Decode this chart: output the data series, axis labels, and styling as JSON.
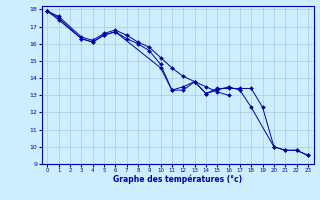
{
  "title": "Graphe des températures (°c)",
  "bg_color": "#cceeff",
  "grid_color": "#aaccdd",
  "line_color": "#0000aa",
  "xlim": [
    -0.5,
    23.5
  ],
  "ylim": [
    9,
    18.2
  ],
  "xticks": [
    0,
    1,
    2,
    3,
    4,
    5,
    6,
    7,
    8,
    9,
    10,
    11,
    12,
    13,
    14,
    15,
    16,
    17,
    18,
    19,
    20,
    21,
    22,
    23
  ],
  "yticks": [
    9,
    10,
    11,
    12,
    13,
    14,
    15,
    16,
    17,
    18
  ],
  "series": [
    {
      "x": [
        0,
        1,
        3,
        4,
        5,
        6,
        7,
        8,
        9,
        10,
        11,
        12,
        13,
        14,
        15,
        16
      ],
      "y": [
        17.9,
        17.6,
        16.4,
        16.2,
        16.6,
        16.8,
        16.5,
        16.1,
        15.8,
        15.2,
        14.6,
        14.1,
        13.8,
        13.5,
        13.2,
        13.0
      ]
    },
    {
      "x": [
        0,
        1,
        3,
        4,
        5,
        6,
        7,
        8,
        9,
        10,
        11,
        12,
        13,
        14,
        15,
        16,
        17,
        18,
        20,
        21,
        22,
        23
      ],
      "y": [
        17.9,
        17.5,
        16.3,
        16.1,
        16.5,
        16.7,
        16.3,
        16.0,
        15.6,
        14.8,
        13.3,
        13.5,
        13.8,
        13.1,
        13.3,
        13.5,
        13.3,
        12.3,
        10.0,
        9.8,
        9.8,
        9.5
      ]
    },
    {
      "x": [
        0,
        1,
        3,
        4,
        5,
        6,
        10,
        11,
        12,
        13,
        14,
        15,
        16,
        17,
        18,
        19,
        20,
        21,
        22,
        23
      ],
      "y": [
        17.9,
        17.4,
        16.3,
        16.1,
        16.5,
        16.7,
        14.6,
        13.3,
        13.3,
        13.8,
        13.1,
        13.4,
        13.4,
        13.4,
        13.4,
        12.3,
        10.0,
        9.8,
        9.8,
        9.5
      ]
    }
  ]
}
